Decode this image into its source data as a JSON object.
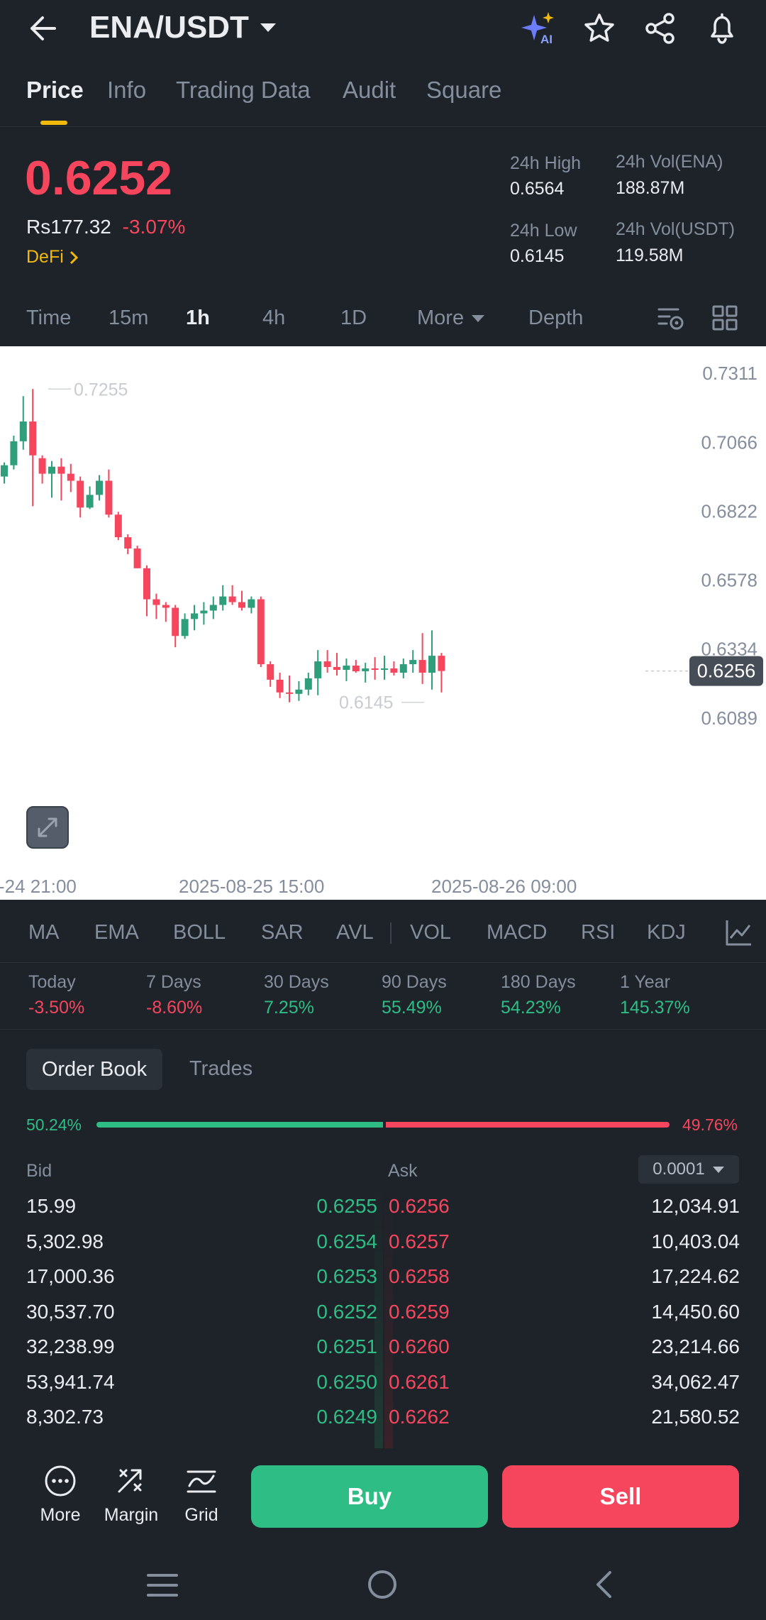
{
  "header": {
    "pair": "ENA/USDT",
    "ai_badge": "AI"
  },
  "tabs": [
    "Price",
    "Info",
    "Trading Data",
    "Audit",
    "Square"
  ],
  "ticker": {
    "price": "0.6252",
    "fiat": "Rs177.32",
    "change": "-3.07%",
    "tag": "DeFi",
    "high_label": "24h High",
    "high": "0.6564",
    "low_label": "24h Low",
    "low": "0.6145",
    "vol_base_label": "24h Vol(ENA)",
    "vol_base": "188.87M",
    "vol_quote_label": "24h Vol(USDT)",
    "vol_quote": "119.58M"
  },
  "intervals": [
    "Time",
    "15m",
    "1h",
    "4h",
    "1D",
    "More",
    "Depth"
  ],
  "chart_data": {
    "type": "candlestick",
    "y_ticks": [
      "0.7311",
      "0.7066",
      "0.6822",
      "0.6578",
      "0.6334",
      "0.6089"
    ],
    "x_labels": [
      "-24 21:00",
      "2025-08-25 15:00",
      "2025-08-26 09:00"
    ],
    "last_price": "0.6256",
    "high_marker": "0.7255",
    "low_marker": "0.6145",
    "ylim": [
      0.6089,
      0.7311
    ],
    "colors": {
      "up": "#2e9e7b",
      "down": "#f6465d"
    },
    "candles": [
      [
        0.6945,
        0.6995,
        0.692,
        0.6985
      ],
      [
        0.6985,
        0.709,
        0.697,
        0.707
      ],
      [
        0.707,
        0.723,
        0.704,
        0.714
      ],
      [
        0.714,
        0.7255,
        0.684,
        0.702
      ],
      [
        0.701,
        0.702,
        0.692,
        0.6955
      ],
      [
        0.6955,
        0.7,
        0.687,
        0.698
      ],
      [
        0.698,
        0.701,
        0.686,
        0.6955
      ],
      [
        0.6955,
        0.699,
        0.689,
        0.693
      ],
      [
        0.693,
        0.6945,
        0.68,
        0.6835
      ],
      [
        0.6835,
        0.691,
        0.683,
        0.688
      ],
      [
        0.688,
        0.695,
        0.686,
        0.693
      ],
      [
        0.693,
        0.697,
        0.68,
        0.681
      ],
      [
        0.681,
        0.682,
        0.672,
        0.673
      ],
      [
        0.673,
        0.674,
        0.667,
        0.669
      ],
      [
        0.669,
        0.67,
        0.662,
        0.662
      ],
      [
        0.662,
        0.663,
        0.645,
        0.651
      ],
      [
        0.651,
        0.653,
        0.644,
        0.649
      ],
      [
        0.649,
        0.65,
        0.643,
        0.648
      ],
      [
        0.648,
        0.649,
        0.634,
        0.638
      ],
      [
        0.638,
        0.646,
        0.637,
        0.644
      ],
      [
        0.644,
        0.649,
        0.64,
        0.646
      ],
      [
        0.646,
        0.65,
        0.642,
        0.647
      ],
      [
        0.647,
        0.652,
        0.644,
        0.649
      ],
      [
        0.649,
        0.656,
        0.647,
        0.652
      ],
      [
        0.652,
        0.656,
        0.649,
        0.65
      ],
      [
        0.65,
        0.654,
        0.647,
        0.648
      ],
      [
        0.648,
        0.652,
        0.646,
        0.651
      ],
      [
        0.651,
        0.652,
        0.627,
        0.628
      ],
      [
        0.628,
        0.629,
        0.62,
        0.6225
      ],
      [
        0.6225,
        0.625,
        0.616,
        0.618
      ],
      [
        0.618,
        0.624,
        0.6145,
        0.6175
      ],
      [
        0.6175,
        0.622,
        0.615,
        0.619
      ],
      [
        0.619,
        0.625,
        0.617,
        0.623
      ],
      [
        0.623,
        0.633,
        0.617,
        0.629
      ],
      [
        0.629,
        0.633,
        0.625,
        0.627
      ],
      [
        0.627,
        0.632,
        0.624,
        0.626
      ],
      [
        0.626,
        0.63,
        0.622,
        0.6275
      ],
      [
        0.6275,
        0.6295,
        0.625,
        0.6255
      ],
      [
        0.6255,
        0.6285,
        0.6215,
        0.6265
      ],
      [
        0.6265,
        0.6305,
        0.6225,
        0.626
      ],
      [
        0.626,
        0.631,
        0.6225,
        0.6265
      ],
      [
        0.6265,
        0.629,
        0.624,
        0.625
      ],
      [
        0.625,
        0.63,
        0.623,
        0.628
      ],
      [
        0.628,
        0.633,
        0.625,
        0.6295
      ],
      [
        0.6295,
        0.639,
        0.621,
        0.625
      ],
      [
        0.625,
        0.64,
        0.619,
        0.631
      ],
      [
        0.631,
        0.632,
        0.618,
        0.6256
      ]
    ]
  },
  "indicators": [
    "MA",
    "EMA",
    "BOLL",
    "SAR",
    "AVL",
    "VOL",
    "MACD",
    "RSI",
    "KDJ"
  ],
  "performance": [
    {
      "label": "Today",
      "value": "-3.50%",
      "dir": "down"
    },
    {
      "label": "7 Days",
      "value": "-8.60%",
      "dir": "down"
    },
    {
      "label": "30 Days",
      "value": "7.25%",
      "dir": "up"
    },
    {
      "label": "90 Days",
      "value": "55.49%",
      "dir": "up"
    },
    {
      "label": "180 Days",
      "value": "54.23%",
      "dir": "up"
    },
    {
      "label": "1 Year",
      "value": "145.37%",
      "dir": "up"
    }
  ],
  "orderbook": {
    "tab_active": "Order Book",
    "tab_other": "Trades",
    "bid_pct": "50.24%",
    "ask_pct": "49.76%",
    "bid_ratio": 0.5024,
    "bid_header": "Bid",
    "ask_header": "Ask",
    "precision": "0.0001",
    "rows": [
      {
        "bid_qty": "15.99",
        "bid_price": "0.6255",
        "ask_price": "0.6256",
        "ask_qty": "12,034.91"
      },
      {
        "bid_qty": "5,302.98",
        "bid_price": "0.6254",
        "ask_price": "0.6257",
        "ask_qty": "10,403.04"
      },
      {
        "bid_qty": "17,000.36",
        "bid_price": "0.6253",
        "ask_price": "0.6258",
        "ask_qty": "17,224.62"
      },
      {
        "bid_qty": "30,537.70",
        "bid_price": "0.6252",
        "ask_price": "0.6259",
        "ask_qty": "14,450.60"
      },
      {
        "bid_qty": "32,238.99",
        "bid_price": "0.6251",
        "ask_price": "0.6260",
        "ask_qty": "23,214.66"
      },
      {
        "bid_qty": "53,941.74",
        "bid_price": "0.6250",
        "ask_price": "0.6261",
        "ask_qty": "34,062.47"
      },
      {
        "bid_qty": "8,302.73",
        "bid_price": "0.6249",
        "ask_price": "0.6262",
        "ask_qty": "21,580.52"
      }
    ]
  },
  "bottom": {
    "more": "More",
    "margin": "Margin",
    "grid": "Grid",
    "buy": "Buy",
    "sell": "Sell"
  }
}
